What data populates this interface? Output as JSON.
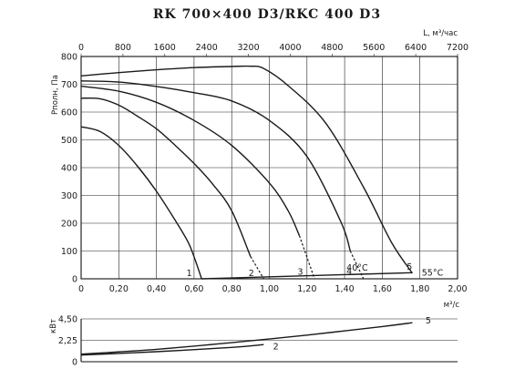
{
  "chart_data": [
    {
      "type": "line",
      "title": "RK 700×400 D3/RKC 400 D3",
      "xlabel": "м³/с",
      "ylabel": "Pполн, Па",
      "x2label": "L, м³/час",
      "xlim": [
        0,
        2.0
      ],
      "ylim": [
        0,
        800
      ],
      "x2lim": [
        0,
        7200
      ],
      "x_ticks": [
        "0",
        "0,20",
        "0,40",
        "0,60",
        "0,80",
        "1,00",
        "1,20",
        "1,40",
        "1,60",
        "1,80",
        "2,00"
      ],
      "y_ticks": [
        "0",
        "100",
        "200",
        "300",
        "400",
        "500",
        "600",
        "700",
        "800"
      ],
      "x2_ticks": [
        "0",
        "800",
        "1600",
        "2400",
        "3200",
        "4000",
        "4800",
        "5600",
        "6400",
        "7200"
      ],
      "grid": true,
      "series": [
        {
          "name": "1",
          "x": [
            0,
            0.1,
            0.2,
            0.3,
            0.4,
            0.5,
            0.57,
            0.61,
            0.64
          ],
          "y": [
            547,
            530,
            480,
            405,
            315,
            210,
            130,
            60,
            0
          ]
        },
        {
          "name": "2",
          "x": [
            0,
            0.1,
            0.2,
            0.3,
            0.4,
            0.5,
            0.6,
            0.7,
            0.8,
            0.9
          ],
          "y": [
            650,
            648,
            625,
            585,
            540,
            480,
            415,
            340,
            245,
            80
          ]
        },
        {
          "name": "3",
          "x": [
            0,
            0.2,
            0.4,
            0.6,
            0.8,
            1.0,
            1.1,
            1.16
          ],
          "y": [
            693,
            675,
            635,
            570,
            480,
            345,
            245,
            155
          ]
        },
        {
          "name": "4",
          "x": [
            0,
            0.2,
            0.4,
            0.6,
            0.8,
            1.0,
            1.2,
            1.38,
            1.43
          ],
          "y": [
            712,
            708,
            692,
            670,
            640,
            570,
            440,
            205,
            100
          ]
        },
        {
          "name": "5",
          "x": [
            0,
            0.2,
            0.4,
            0.6,
            0.8,
            0.9,
            0.97,
            1.1,
            1.3,
            1.5,
            1.65,
            1.76
          ],
          "y": [
            730,
            742,
            752,
            760,
            764,
            765,
            757,
            695,
            560,
            330,
            130,
            20
          ]
        }
      ],
      "dashed_extensions": [
        {
          "name": "2",
          "x": [
            0.9,
            0.97
          ],
          "y": [
            80,
            0
          ]
        },
        {
          "name": "3",
          "x": [
            1.16,
            1.24
          ],
          "y": [
            155,
            0
          ]
        },
        {
          "name": "4",
          "x": [
            1.43,
            1.5
          ],
          "y": [
            100,
            0
          ]
        }
      ],
      "temperature_line": {
        "x": [
          0.64,
          1.76
        ],
        "y": [
          0,
          22
        ]
      },
      "annotations": [
        "1",
        "2",
        "3",
        "4",
        "5",
        "40°C",
        "55°C"
      ]
    },
    {
      "type": "line",
      "ylabel": "кВт",
      "ylim": [
        0,
        4.5
      ],
      "y_ticks": [
        "0",
        "2,25",
        "4,50"
      ],
      "series": [
        {
          "name": "5",
          "x": [
            0,
            0.4,
            0.8,
            1.2,
            1.6,
            1.76
          ],
          "y": [
            0.8,
            1.3,
            2.0,
            2.8,
            3.7,
            4.1
          ]
        },
        {
          "name": "2",
          "x": [
            0,
            0.4,
            0.8,
            0.97
          ],
          "y": [
            0.7,
            1.05,
            1.5,
            1.8
          ]
        }
      ],
      "annotations": [
        "5",
        "2"
      ]
    }
  ]
}
